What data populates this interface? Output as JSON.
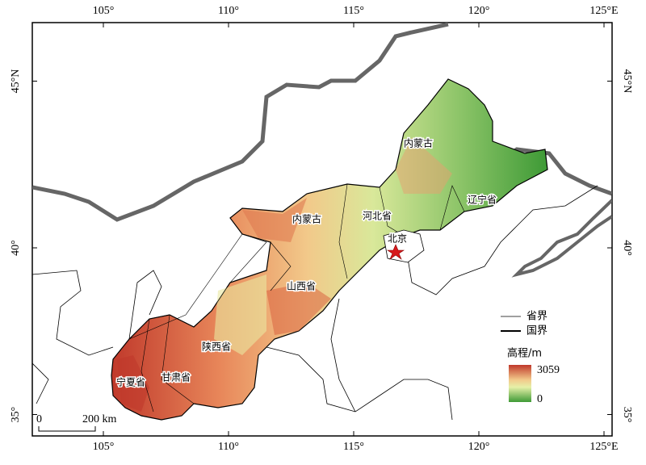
{
  "map": {
    "lon_ticks": [
      {
        "value": 105,
        "label": "105°"
      },
      {
        "value": 110,
        "label": "110°"
      },
      {
        "value": 115,
        "label": "115°"
      },
      {
        "value": 120,
        "label": "120°"
      },
      {
        "value": 125,
        "label": "125°E"
      }
    ],
    "lat_ticks": [
      {
        "value": 35,
        "label": "35°"
      },
      {
        "value": 40,
        "label": "40°"
      },
      {
        "value": 45,
        "label": "45°N"
      }
    ],
    "places": [
      "内蒙古",
      "内蒙古",
      "河北省",
      "辽宁省",
      "北京",
      "山西省",
      "陕西省",
      "甘肃省",
      "宁夏省"
    ],
    "legend": {
      "province": "省界",
      "country": "国界",
      "elevation_title": "高程/m",
      "elevation_max": 3059,
      "elevation_min": 0
    },
    "scale_bar": {
      "start": "0",
      "end": "200 km"
    }
  }
}
